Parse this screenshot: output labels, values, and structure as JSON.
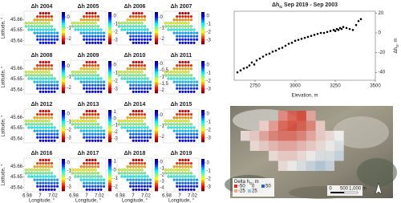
{
  "chart_data": [
    {
      "type": "dotmap",
      "title": "Δh 2004",
      "clim": [
        -2.5,
        0.5
      ],
      "cticks": [
        0,
        -1,
        -2
      ],
      "row_values": [
        -2.3,
        -2,
        -1.6,
        -1.2,
        -0.9,
        -0.6,
        -0.4,
        -0.2,
        0,
        0.2
      ],
      "ylabel": "Latitude, °",
      "ylim": [
        45.636,
        45.668
      ],
      "yticks": [
        45.66,
        45.65,
        45.64
      ]
    },
    {
      "type": "dotmap",
      "title": "Δh 2005",
      "clim": [
        -3.5,
        0.5
      ],
      "cticks": [
        0,
        -1,
        -2,
        -3
      ],
      "row_values": [
        -3.2,
        -2.8,
        -2.3,
        -1.8,
        -1.4,
        -1,
        -0.7,
        -0.4,
        -0.1,
        0.2
      ]
    },
    {
      "type": "dotmap",
      "title": "Δh 2006",
      "clim": [
        -2.5,
        0.5
      ],
      "cticks": [
        0,
        -1,
        -2
      ],
      "row_values": [
        -2.2,
        -1.9,
        -1.5,
        -1.1,
        -0.8,
        -0.6,
        -0.3,
        -0.1,
        0.1,
        0.3
      ]
    },
    {
      "type": "dotmap",
      "title": "Δh 2007",
      "clim": [
        -3.5,
        0.5
      ],
      "cticks": [
        0,
        -1,
        -2,
        -3
      ],
      "row_values": [
        -3.3,
        -2.9,
        -2.4,
        -1.9,
        -1.5,
        -1.1,
        -0.7,
        -0.4,
        -0.1,
        0.2
      ]
    },
    {
      "type": "dotmap",
      "title": "Δh 2008",
      "clim": [
        -2.5,
        0.5
      ],
      "cticks": [
        0,
        -1,
        -2
      ],
      "row_values": [
        -2.2,
        -2,
        -1.7,
        -1.3,
        -1,
        -0.7,
        -0.5,
        -0.2,
        0,
        0.2
      ],
      "ylabel": "Latitude, °",
      "ylim": [
        45.636,
        45.668
      ],
      "yticks": [
        45.66,
        45.65,
        45.64
      ]
    },
    {
      "type": "dotmap",
      "title": "Δh 2009",
      "clim": [
        -3.5,
        0.5
      ],
      "cticks": [
        0,
        -1,
        -2,
        -3
      ],
      "row_values": [
        -3.1,
        -2.7,
        -2.2,
        -1.8,
        -1.4,
        -1,
        -0.7,
        -0.4,
        -0.1,
        0.2
      ]
    },
    {
      "type": "dotmap",
      "title": "Δh 2010",
      "clim": [
        -2.2,
        0.2
      ],
      "cticks": [
        0,
        -0.5,
        -1,
        -1.5,
        -2
      ],
      "row_values": [
        -2,
        -1.8,
        -1.5,
        -1.2,
        -1,
        -0.8,
        -0.6,
        -0.4,
        -0.2,
        0
      ]
    },
    {
      "type": "dotmap",
      "title": "Δh 2011",
      "clim": [
        -3.5,
        0.5
      ],
      "cticks": [
        0,
        -1,
        -2,
        -3
      ],
      "row_values": [
        -3.2,
        -2.8,
        -2.3,
        -1.9,
        -1.5,
        -1.1,
        -0.8,
        -0.5,
        -0.2,
        0.1
      ]
    },
    {
      "type": "dotmap",
      "title": "Δh 2012",
      "clim": [
        -3.5,
        0.5
      ],
      "cticks": [
        0,
        -1,
        -2,
        -3
      ],
      "row_values": [
        -3.1,
        -2.8,
        -2.3,
        -1.8,
        -1.4,
        -1,
        -0.7,
        -0.4,
        -0.1,
        0.2
      ],
      "ylabel": "Latitude, °",
      "ylim": [
        45.636,
        45.668
      ],
      "yticks": [
        45.66,
        45.65,
        45.64
      ]
    },
    {
      "type": "dotmap",
      "title": "Δh 2013",
      "clim": [
        -3.5,
        1.3
      ],
      "cticks": [
        1,
        0,
        -1,
        -2,
        -3
      ],
      "row_values": [
        -3.2,
        -2.7,
        -2.1,
        -1.6,
        -1.1,
        -0.7,
        -0.3,
        0,
        0.4,
        0.9
      ]
    },
    {
      "type": "dotmap",
      "title": "Δh 2014",
      "clim": [
        -2.5,
        0.5
      ],
      "cticks": [
        0,
        -1,
        -2
      ],
      "row_values": [
        -2.3,
        -2,
        -1.6,
        -1.3,
        -1,
        -0.7,
        -0.4,
        -0.2,
        0,
        0.2
      ]
    },
    {
      "type": "dotmap",
      "title": "Δh 2015",
      "clim": [
        -3.5,
        0.5
      ],
      "cticks": [
        0,
        -1,
        -2,
        -3
      ],
      "row_values": [
        -3.2,
        -2.8,
        -2.4,
        -1.9,
        -1.5,
        -1.1,
        -0.8,
        -0.5,
        -0.2,
        0.1
      ]
    },
    {
      "type": "dotmap",
      "title": "Δh 2016",
      "clim": [
        -3.5,
        0.5
      ],
      "cticks": [
        0,
        -1,
        -2,
        -3
      ],
      "row_values": [
        -3.1,
        -2.7,
        -2.3,
        -1.8,
        -1.4,
        -1,
        -0.7,
        -0.4,
        -0.1,
        0.2
      ],
      "ylabel": "Latitude, °",
      "ylim": [
        45.636,
        45.668
      ],
      "yticks": [
        45.66,
        45.65,
        45.64
      ],
      "xlabel": "Longitude, °",
      "xlim": [
        6.975,
        7.03
      ],
      "xticks": [
        6.98,
        7,
        7.02
      ]
    },
    {
      "type": "dotmap",
      "title": "Δh 2017",
      "clim": [
        -2.5,
        1.3
      ],
      "cticks": [
        1,
        0,
        -1,
        -2
      ],
      "row_values": [
        -2.3,
        -1.9,
        -1.5,
        -1.1,
        -0.7,
        -0.4,
        -0.1,
        0.2,
        0.5,
        0.9
      ],
      "xlabel": "Longitude, °",
      "xlim": [
        6.975,
        7.03
      ],
      "xticks": [
        6.98,
        7,
        7.02
      ]
    },
    {
      "type": "dotmap",
      "title": "Δh 2018",
      "clim": [
        -4.5,
        0.5
      ],
      "cticks": [
        0,
        -1,
        -2,
        -3,
        -4
      ],
      "row_values": [
        -4.2,
        -3.6,
        -3,
        -2.4,
        -1.9,
        -1.4,
        -1,
        -0.6,
        -0.2,
        0.2
      ],
      "xlabel": "Longitude, °",
      "xlim": [
        6.975,
        7.03
      ],
      "xticks": [
        6.98,
        7,
        7.02
      ]
    },
    {
      "type": "dotmap",
      "title": "Δh 2019",
      "clim": [
        -3.5,
        0.5
      ],
      "cticks": [
        0,
        -1,
        -2,
        -3
      ],
      "row_values": [
        -3.2,
        -2.8,
        -2.3,
        -1.9,
        -1.5,
        -1.1,
        -0.7,
        -0.4,
        -0.1,
        0.2
      ],
      "xlabel": "Longitude, °",
      "xlim": [
        6.975,
        7.03
      ],
      "xticks": [
        6.98,
        7,
        7.02
      ]
    },
    {
      "type": "scatter",
      "title": [
        "Δh",
        "G",
        " Sep 2019 - Sep 2003"
      ],
      "xlabel": "Elevation, m",
      "ylabel": [
        "Δh",
        "G",
        ", m"
      ],
      "color": "#000000",
      "xlim": [
        2620,
        3500
      ],
      "xticks": [
        2750,
        3000,
        3250,
        3500
      ],
      "ylim": [
        -48,
        22
      ],
      "yticks": [
        20,
        0,
        -20,
        -40
      ],
      "x": [
        2640,
        2660,
        2680,
        2700,
        2715,
        2730,
        2745,
        2760,
        2780,
        2800,
        2820,
        2840,
        2860,
        2880,
        2900,
        2920,
        2940,
        2960,
        2980,
        3000,
        3020,
        3040,
        3060,
        3080,
        3100,
        3120,
        3140,
        3160,
        3180,
        3200,
        3220,
        3240,
        3250,
        3260,
        3270,
        3280,
        3290,
        3300,
        3320,
        3340,
        3360,
        3380,
        3395,
        3410
      ],
      "y": [
        -40,
        -38,
        -36,
        -35,
        -33,
        -30,
        -32,
        -28,
        -26,
        -24,
        -22,
        -21,
        -19,
        -18,
        -16,
        -15,
        -13,
        -11,
        -10,
        -8,
        -7,
        -6,
        -5,
        -4,
        -3,
        -2,
        -1,
        0,
        0,
        1,
        2,
        3,
        2,
        4,
        3,
        5,
        4,
        6,
        5,
        4,
        3,
        8,
        12,
        14
      ]
    },
    {
      "type": "rastermap",
      "legend_title": [
        "Delta h",
        "G",
        ", m"
      ],
      "legend": [
        {
          "label": "-50",
          "color": "#d7301f"
        },
        {
          "label": "-25",
          "color": "#f4a582"
        },
        {
          "label": "0",
          "color": "#f7f7f7"
        },
        {
          "label": "25",
          "color": "#92c5de"
        },
        {
          "label": "50",
          "color": "#2166ac"
        }
      ],
      "clim": [
        -50,
        50
      ],
      "scalebar": [
        "0",
        "500",
        "1,000 m"
      ],
      "grid": [
        [
          null,
          null,
          null,
          null,
          -30,
          -40,
          -45,
          -20,
          null,
          null,
          null,
          null
        ],
        [
          null,
          null,
          -10,
          -25,
          -40,
          -45,
          -40,
          -30,
          -10,
          null,
          null,
          null
        ],
        [
          -5,
          -10,
          -20,
          -30,
          -35,
          -35,
          -30,
          -20,
          -10,
          -5,
          0,
          null
        ],
        [
          null,
          -5,
          -10,
          -15,
          -20,
          -20,
          -15,
          -10,
          -5,
          0,
          5,
          null
        ],
        [
          null,
          null,
          null,
          -5,
          -10,
          -10,
          -5,
          0,
          5,
          5,
          10,
          null
        ],
        [
          null,
          null,
          null,
          null,
          -5,
          0,
          5,
          10,
          15,
          10,
          null,
          null
        ]
      ]
    }
  ]
}
